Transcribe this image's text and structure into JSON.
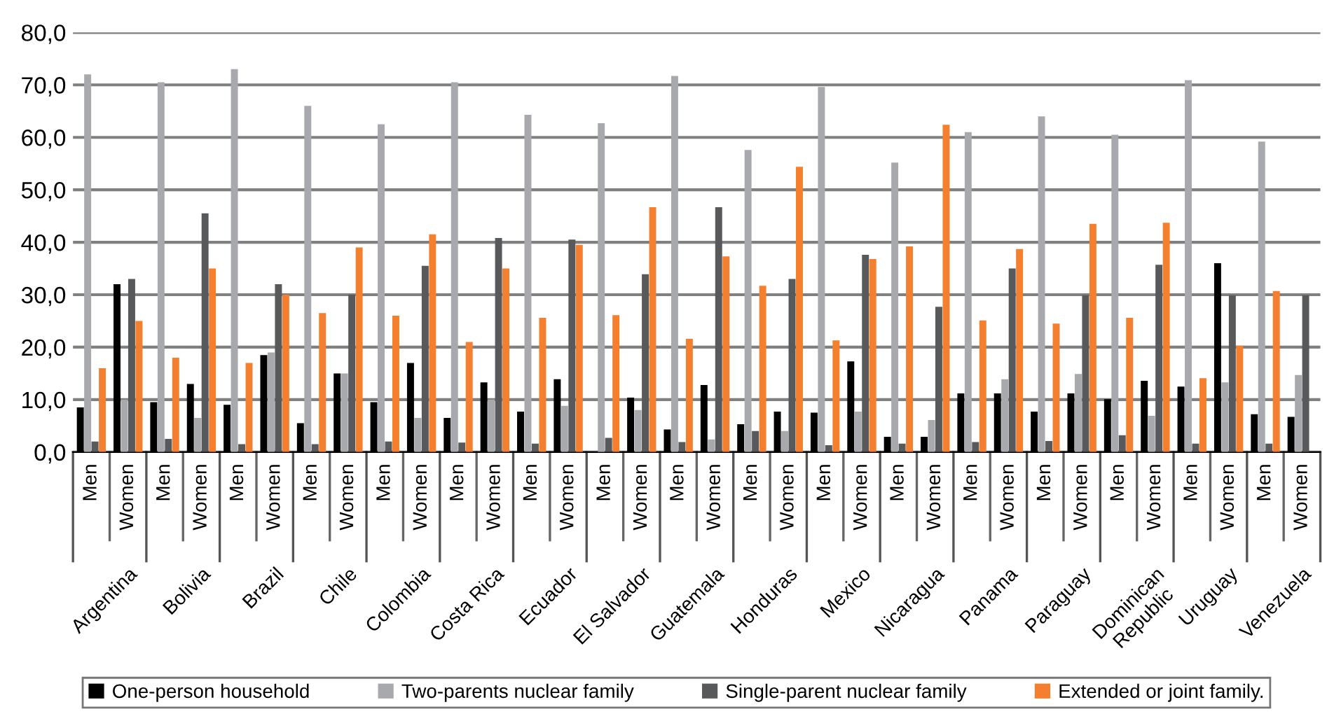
{
  "chart_data": {
    "type": "bar",
    "categories": [
      "Men",
      "Women",
      "Men",
      "Women",
      "Men",
      "Women",
      "Men",
      "Women",
      "Men",
      "Women",
      "Men",
      "Women",
      "Men",
      "Women",
      "Men",
      "Women",
      "Men",
      "Women",
      "Men",
      "Women",
      "Men",
      "Women",
      "Men",
      "Women",
      "Men",
      "Women",
      "Men",
      "Women",
      "Men",
      "Women",
      "Men",
      "Women",
      "Men",
      "Women"
    ],
    "annotations": [
      "Argentina",
      "Bolivia",
      "Brazil",
      "Chile",
      "Colombia",
      "Costa Rica",
      "Ecuador",
      "El Salvador",
      "Guatemala",
      "Honduras",
      "Mexico",
      "Nicaragua",
      "Panama",
      "Paraguay",
      "Dominican Republic",
      "Uruguay",
      "Venezuela"
    ],
    "series": [
      {
        "name": "One-person household",
        "color": "#000000",
        "values": [
          8.5,
          32,
          9.5,
          13,
          9,
          18.5,
          5.5,
          15,
          9.5,
          17,
          6.5,
          13.3,
          7.7,
          13.9,
          null,
          10.4,
          4.3,
          12.8,
          5.3,
          7.7,
          7.5,
          17.3,
          2.9,
          2.9,
          11.2,
          11.2,
          7.7,
          11.2,
          10.1,
          13.6,
          12.5,
          36,
          7.2,
          6.7
        ]
      },
      {
        "name": "Two-parents nuclear family",
        "color": "#a7a9ac",
        "values": [
          72,
          10,
          70.5,
          6.5,
          73,
          19,
          66,
          15,
          62.5,
          6.5,
          70.5,
          10,
          64.3,
          8.8,
          62.7,
          8,
          71.7,
          2.4,
          57.6,
          4,
          69.6,
          7.7,
          55.2,
          6.1,
          61,
          13.9,
          64,
          14.9,
          60.5,
          6.9,
          70.9,
          13.3,
          59.2,
          14.7
        ]
      },
      {
        "name": "Single-parent nuclear family",
        "color": "#58595b",
        "values": [
          2,
          33,
          2.5,
          45.5,
          1.5,
          32,
          1.5,
          30,
          2,
          35.5,
          1.8,
          40.8,
          1.6,
          40.5,
          2.7,
          33.9,
          1.9,
          46.7,
          4,
          33,
          1.3,
          37.6,
          1.6,
          27.7,
          1.9,
          35,
          2.1,
          29.9,
          3.2,
          35.7,
          1.6,
          29.9,
          1.6,
          29.9
        ]
      },
      {
        "name": "Extended or joint family.",
        "color": "#f47f2f",
        "values": [
          16,
          25,
          18,
          35,
          17,
          30,
          26.5,
          39,
          26,
          41.5,
          21,
          35,
          25.6,
          39.5,
          26.1,
          46.7,
          21.6,
          37.3,
          31.7,
          54.4,
          21.3,
          36.8,
          39.2,
          62.4,
          25.1,
          38.7,
          24.5,
          43.5,
          25.6,
          43.7,
          14.1,
          20.3,
          30.7,
          null
        ]
      }
    ],
    "ylim": [
      0,
      80
    ],
    "yticks": [
      {
        "value": 0,
        "label": "0,0"
      },
      {
        "value": 10,
        "label": "10,0"
      },
      {
        "value": 20,
        "label": "20,0"
      },
      {
        "value": 30,
        "label": "30,0"
      },
      {
        "value": 40,
        "label": "40,0"
      },
      {
        "value": 50,
        "label": "50,0"
      },
      {
        "value": 60,
        "label": "60,0"
      },
      {
        "value": 70,
        "label": "70,0"
      },
      {
        "value": 80,
        "label": "80,0"
      }
    ],
    "grid": "y",
    "legend": "bottom"
  }
}
